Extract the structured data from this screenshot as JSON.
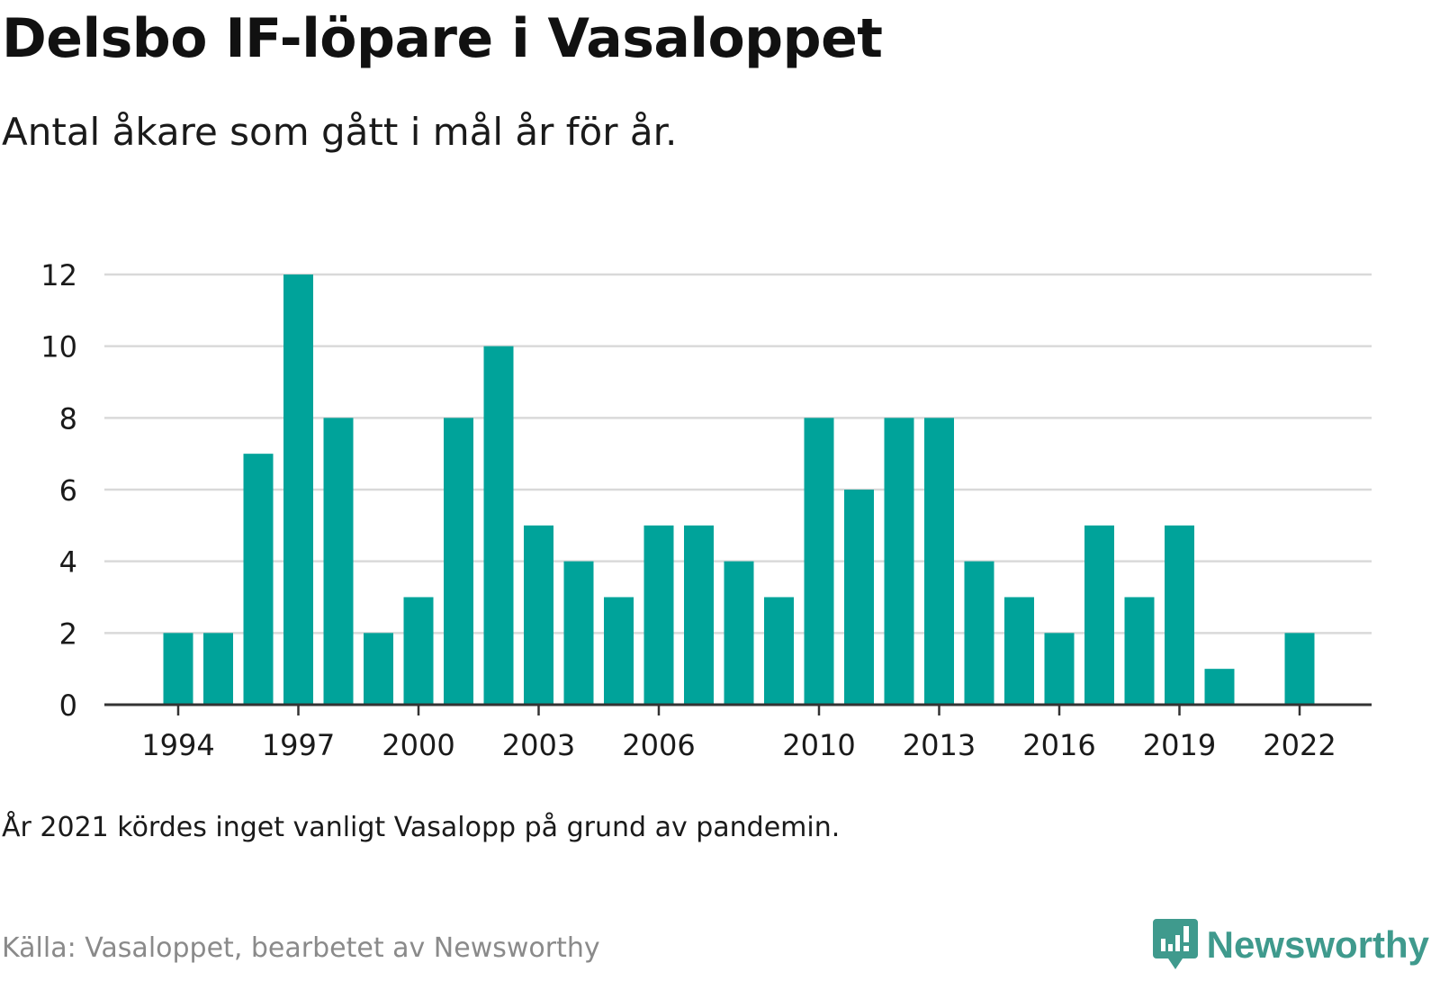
{
  "header": {
    "title": "Delsbo IF-löpare i Vasaloppet",
    "subtitle": "Antal åkare som gått i mål år för år."
  },
  "footer": {
    "note": "År 2021 kördes inget vanligt Vasalopp på grund av pandemin.",
    "source": "Källa: Vasaloppet, bearbetet av Newsworthy",
    "brand": "Newsworthy"
  },
  "colors": {
    "bar": "#00a39a",
    "grid": "#d9d9d9",
    "axis": "#333333",
    "brand": "#3f9a8d"
  },
  "chart_data": {
    "type": "bar",
    "title": "Delsbo IF-löpare i Vasaloppet",
    "subtitle": "Antal åkare som gått i mål år för år.",
    "categories": [
      1994,
      1995,
      1996,
      1997,
      1998,
      1999,
      2000,
      2001,
      2002,
      2003,
      2004,
      2005,
      2006,
      2007,
      2008,
      2009,
      2010,
      2011,
      2012,
      2013,
      2014,
      2015,
      2016,
      2017,
      2018,
      2019,
      2020,
      2021,
      2022
    ],
    "values": [
      2,
      2,
      7,
      12,
      8,
      2,
      3,
      8,
      10,
      5,
      4,
      3,
      5,
      5,
      4,
      3,
      8,
      6,
      8,
      8,
      4,
      3,
      2,
      5,
      3,
      5,
      1,
      0,
      2
    ],
    "x_tick_labels": [
      "1994",
      "1997",
      "2000",
      "2003",
      "2006",
      "2010",
      "2013",
      "2016",
      "2019",
      "2022"
    ],
    "y_tick_labels": [
      "0",
      "2",
      "4",
      "6",
      "8",
      "10",
      "12"
    ],
    "ylim": [
      0,
      12
    ],
    "grid": true,
    "xlabel": "",
    "ylabel": ""
  }
}
